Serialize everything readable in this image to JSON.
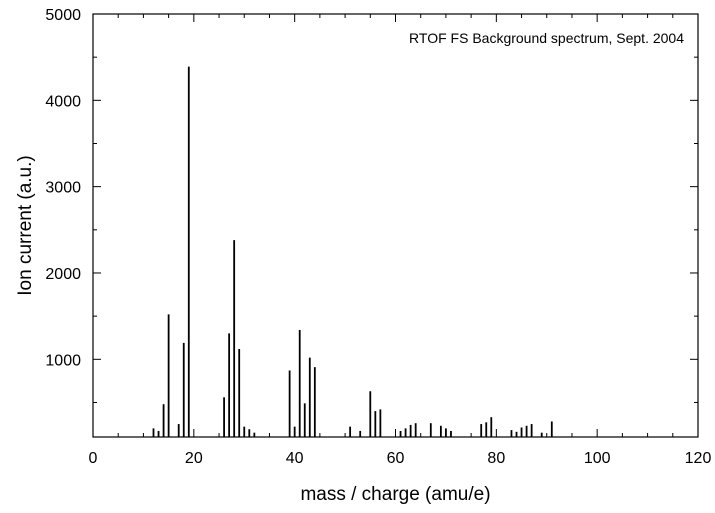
{
  "chart_data": {
    "type": "bar",
    "title": "",
    "annotation": "RTOF FS Background spectrum, Sept. 2004",
    "xlabel": "mass / charge (amu/e)",
    "ylabel": "Ion current (a.u.)",
    "xlim": [
      0,
      120
    ],
    "ylim": [
      100,
      5000
    ],
    "x_ticks": [
      0,
      20,
      40,
      60,
      80,
      100,
      120
    ],
    "y_ticks": [
      1000,
      2000,
      3000,
      4000,
      5000
    ],
    "grid": false,
    "legend": "none",
    "series": [
      {
        "x": [
          12,
          13,
          14,
          15,
          17,
          18,
          19,
          26,
          27,
          28,
          29,
          30,
          31,
          32,
          39,
          40,
          41,
          42,
          43,
          44,
          51,
          53,
          55,
          56,
          57,
          61,
          62,
          63,
          64,
          67,
          69,
          70,
          71,
          77,
          78,
          79,
          83,
          84,
          85,
          86,
          87,
          89,
          91
        ],
        "values": [
          200,
          170,
          480,
          1520,
          250,
          1190,
          4390,
          560,
          1300,
          2380,
          1120,
          220,
          190,
          150,
          870,
          220,
          1340,
          490,
          1020,
          910,
          220,
          170,
          630,
          400,
          420,
          170,
          200,
          240,
          260,
          260,
          230,
          200,
          170,
          250,
          270,
          330,
          180,
          160,
          210,
          230,
          250,
          150,
          280
        ]
      }
    ]
  },
  "colors": {
    "line": "#000000",
    "background": "#ffffff"
  }
}
